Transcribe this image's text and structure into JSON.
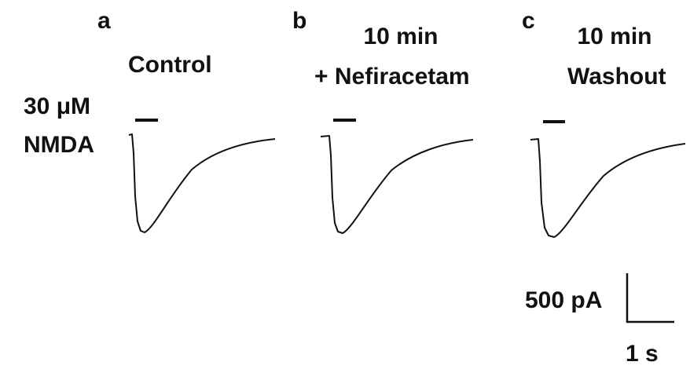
{
  "panels": [
    {
      "letter": "a",
      "title": [
        "Control"
      ]
    },
    {
      "letter": "b",
      "title": [
        "10 min",
        "+ Nefiracetam"
      ]
    },
    {
      "letter": "c",
      "title": [
        "10 min",
        "Washout"
      ]
    }
  ],
  "stimulus": [
    "30 μM",
    "NMDA"
  ],
  "scale_bar": {
    "current": "500 pA",
    "time": "1 s"
  }
}
